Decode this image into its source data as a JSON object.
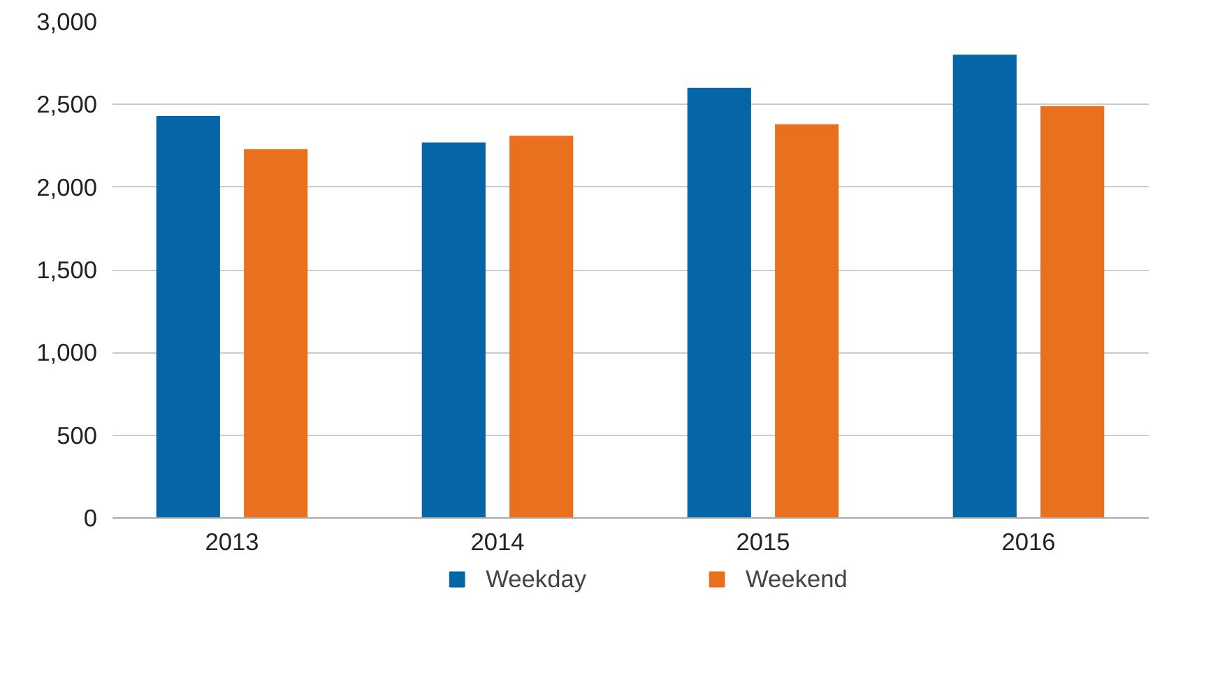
{
  "chart_data": {
    "type": "bar",
    "categories": [
      "2013",
      "2014",
      "2015",
      "2016"
    ],
    "series": [
      {
        "name": "Weekday",
        "color": "#0565a6",
        "values": [
          2430,
          2270,
          2600,
          2800
        ]
      },
      {
        "name": "Weekend",
        "color": "#e8701f",
        "values": [
          2230,
          2310,
          2380,
          2490
        ]
      }
    ],
    "ylim": [
      0,
      3000
    ],
    "yticks": [
      {
        "value": 0,
        "label": "0"
      },
      {
        "value": 500,
        "label": "500"
      },
      {
        "value": 1000,
        "label": "1,000"
      },
      {
        "value": 1500,
        "label": "1,500"
      },
      {
        "value": 2000,
        "label": "2,000"
      },
      {
        "value": 2500,
        "label": "2,500"
      },
      {
        "value": 3000,
        "label": "3,000"
      }
    ],
    "grid": "y",
    "legend": "bottom"
  }
}
